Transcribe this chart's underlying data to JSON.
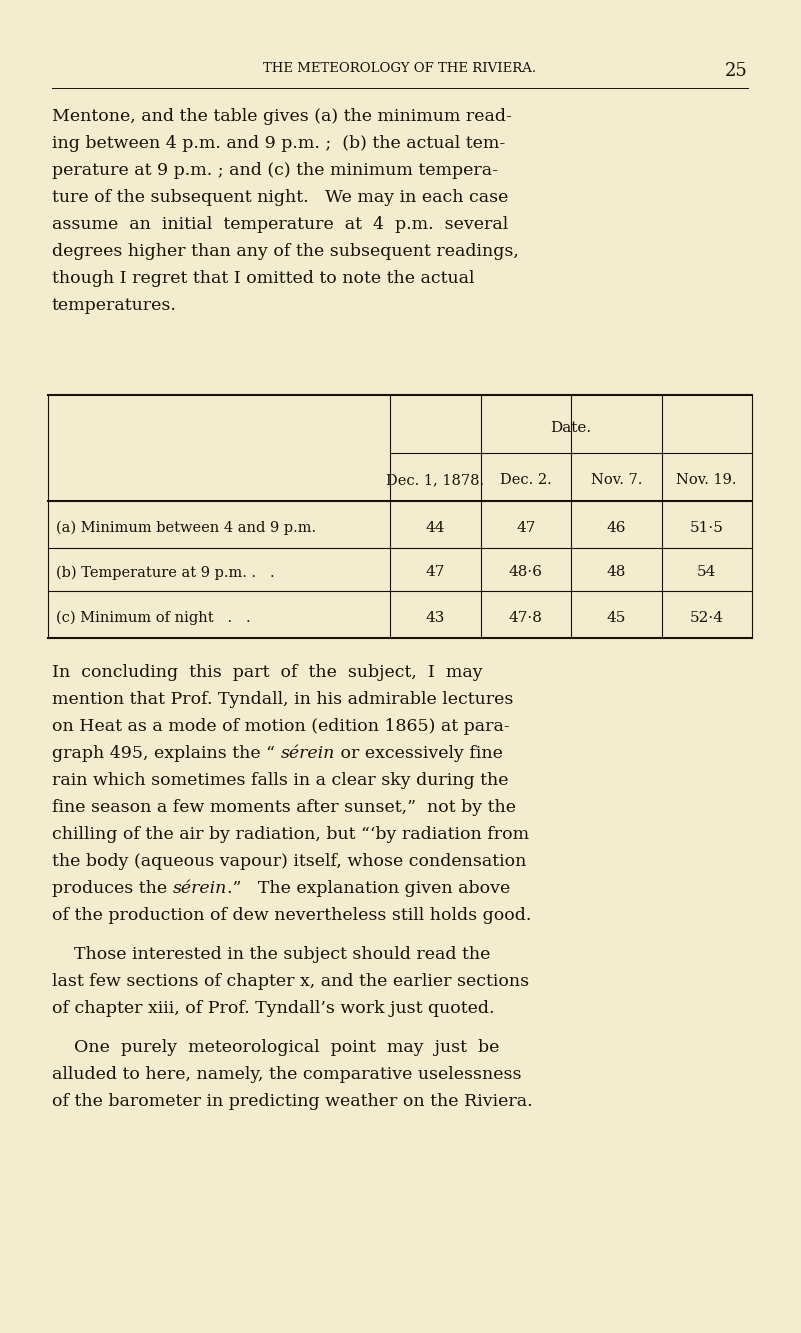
{
  "bg_color": "#f2edcf",
  "text_color": "#1a1008",
  "dpi": 100,
  "fig_w": 8.01,
  "fig_h": 13.33,
  "header": "THE METEOROLOGY OF THE RIVIERA.",
  "page_num": "25",
  "col_headers": [
    "Dec. 1, 1878.",
    "Dec. 2.",
    "Nov. 7.",
    "Nov. 19."
  ],
  "row_labels": [
    "(a) Minimum between 4 and 9 p.m.",
    "(b) Temperature at 9 p.m. .  .",
    "(c) Minimum of night   .  ."
  ],
  "table_data": [
    [
      "44",
      "47",
      "46",
      "51·5"
    ],
    [
      "47",
      "48·6",
      "48",
      "54"
    ],
    [
      "43",
      "47·8",
      "45",
      "52·4"
    ]
  ],
  "p1_lines": [
    "Mentone, and the table gives (a) the minimum read-",
    "ing between 4 p.m. and 9 p.m. ;  (b) the actual tem-",
    "perature at 9 p.m. ; and (c) the minimum tempera-",
    "ture of the subsequent night.   We may in each case",
    "assume  an  initial  temperature  at  4  p.m.  several",
    "degrees higher than any of the subsequent readings,",
    "though I regret that I omitted to note the actual",
    "temperatures."
  ],
  "p2_lines": [
    [
      [
        "In  concluding  this  part  of  the  subject,  I  may",
        false
      ]
    ],
    [
      [
        "mention that Prof. Tyndall, in his admirable lectures",
        false
      ]
    ],
    [
      [
        "on Heat as a mode of motion (edition 1865) at para-",
        false
      ]
    ],
    [
      [
        "graph 495, explains the “ ",
        false
      ],
      [
        "sérein",
        true
      ],
      [
        " or excessively fine",
        false
      ]
    ],
    [
      [
        "rain which sometimes falls in a clear sky during the",
        false
      ]
    ],
    [
      [
        "fine season a few moments after sunset,”  not by the",
        false
      ]
    ],
    [
      [
        "chilling of the air by radiation, but “‘by radiation from",
        false
      ]
    ],
    [
      [
        "the body (aqueous vapour) itself, whose condensation",
        false
      ]
    ],
    [
      [
        "produces the ",
        false
      ],
      [
        "sérein",
        true
      ],
      [
        ".”   The explanation given above",
        false
      ]
    ],
    [
      [
        "of the production of dew nevertheless still holds good.",
        false
      ]
    ]
  ],
  "p3_lines": [
    "    Those interested in the subject should read the",
    "last few sections of chapter x, and the earlier sections",
    "of chapter xiii, of Prof. Tyndall’s work just quoted."
  ],
  "p4_lines": [
    "    One  purely  meteorological  point  may  just  be",
    "alluded to here, namely, the comparative uselessness",
    "of the barometer in predicting weather on the Riviera."
  ]
}
